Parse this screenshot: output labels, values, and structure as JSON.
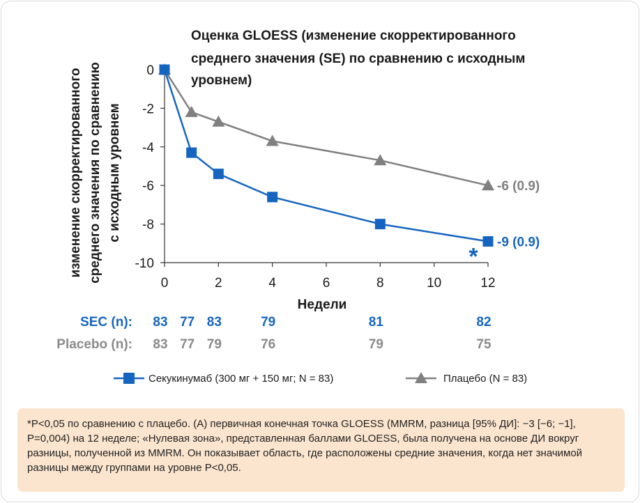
{
  "chart_data": {
    "type": "line",
    "title_lines": [
      "Оценка GLOESS (изменение скорректированного",
      "среднего значения (SE) по сравнению с исходным",
      "уровнем)"
    ],
    "ylabel_lines": [
      "изменение скорректированного",
      "среднего значения по сравнению",
      "с исходным уровнем"
    ],
    "xlabel": "Недели",
    "xlim": [
      0,
      12
    ],
    "ylim": [
      -10,
      0
    ],
    "x_ticks": [
      "0",
      "2",
      "4",
      "6",
      "8",
      "10",
      "12"
    ],
    "y_ticks": [
      "0",
      "-2",
      "-4",
      "-6",
      "-8",
      "-10"
    ],
    "series": [
      {
        "name": "Секукинумаб (300 мг + 150 мг; N = 83)",
        "color": "#1565c0",
        "marker": "square",
        "x": [
          0,
          1,
          2,
          4,
          8,
          12
        ],
        "y": [
          0,
          -4.3,
          -5.4,
          -6.6,
          -8.0,
          -8.9
        ],
        "end_label": "-9 (0.9)"
      },
      {
        "name": "Плацебо (N = 83)",
        "color": "#808080",
        "marker": "triangle",
        "x": [
          0,
          1,
          2,
          4,
          8,
          12
        ],
        "y": [
          0,
          -2.2,
          -2.7,
          -3.7,
          -4.7,
          -6.0
        ],
        "end_label": "-6 (0.9)"
      }
    ],
    "annotation": "*",
    "n_table": {
      "sec_label": "SEC (n):",
      "placebo_label": "Placebo (n):",
      "x": [
        0,
        1,
        2,
        4,
        8,
        12
      ],
      "sec": [
        "83",
        "77",
        "83",
        "79",
        "81",
        "82"
      ],
      "placebo": [
        "83",
        "77",
        "79",
        "76",
        "79",
        "75"
      ]
    }
  },
  "footnote": "*P<0,05 по сравнению с плацебо. (A) первичная конечная точка GLOESS (MMRM, разница [95% ДИ]: −3 [−6; −1], P=0,004) на 12 неделе; «Нулевая зона», представленная баллами GLOESS, была получена на основе ДИ вокруг разницы, полученной из MMRM. Он показывает область, где расположены средние значения, когда нет значимой разницы между группами на уровне P<0,05."
}
